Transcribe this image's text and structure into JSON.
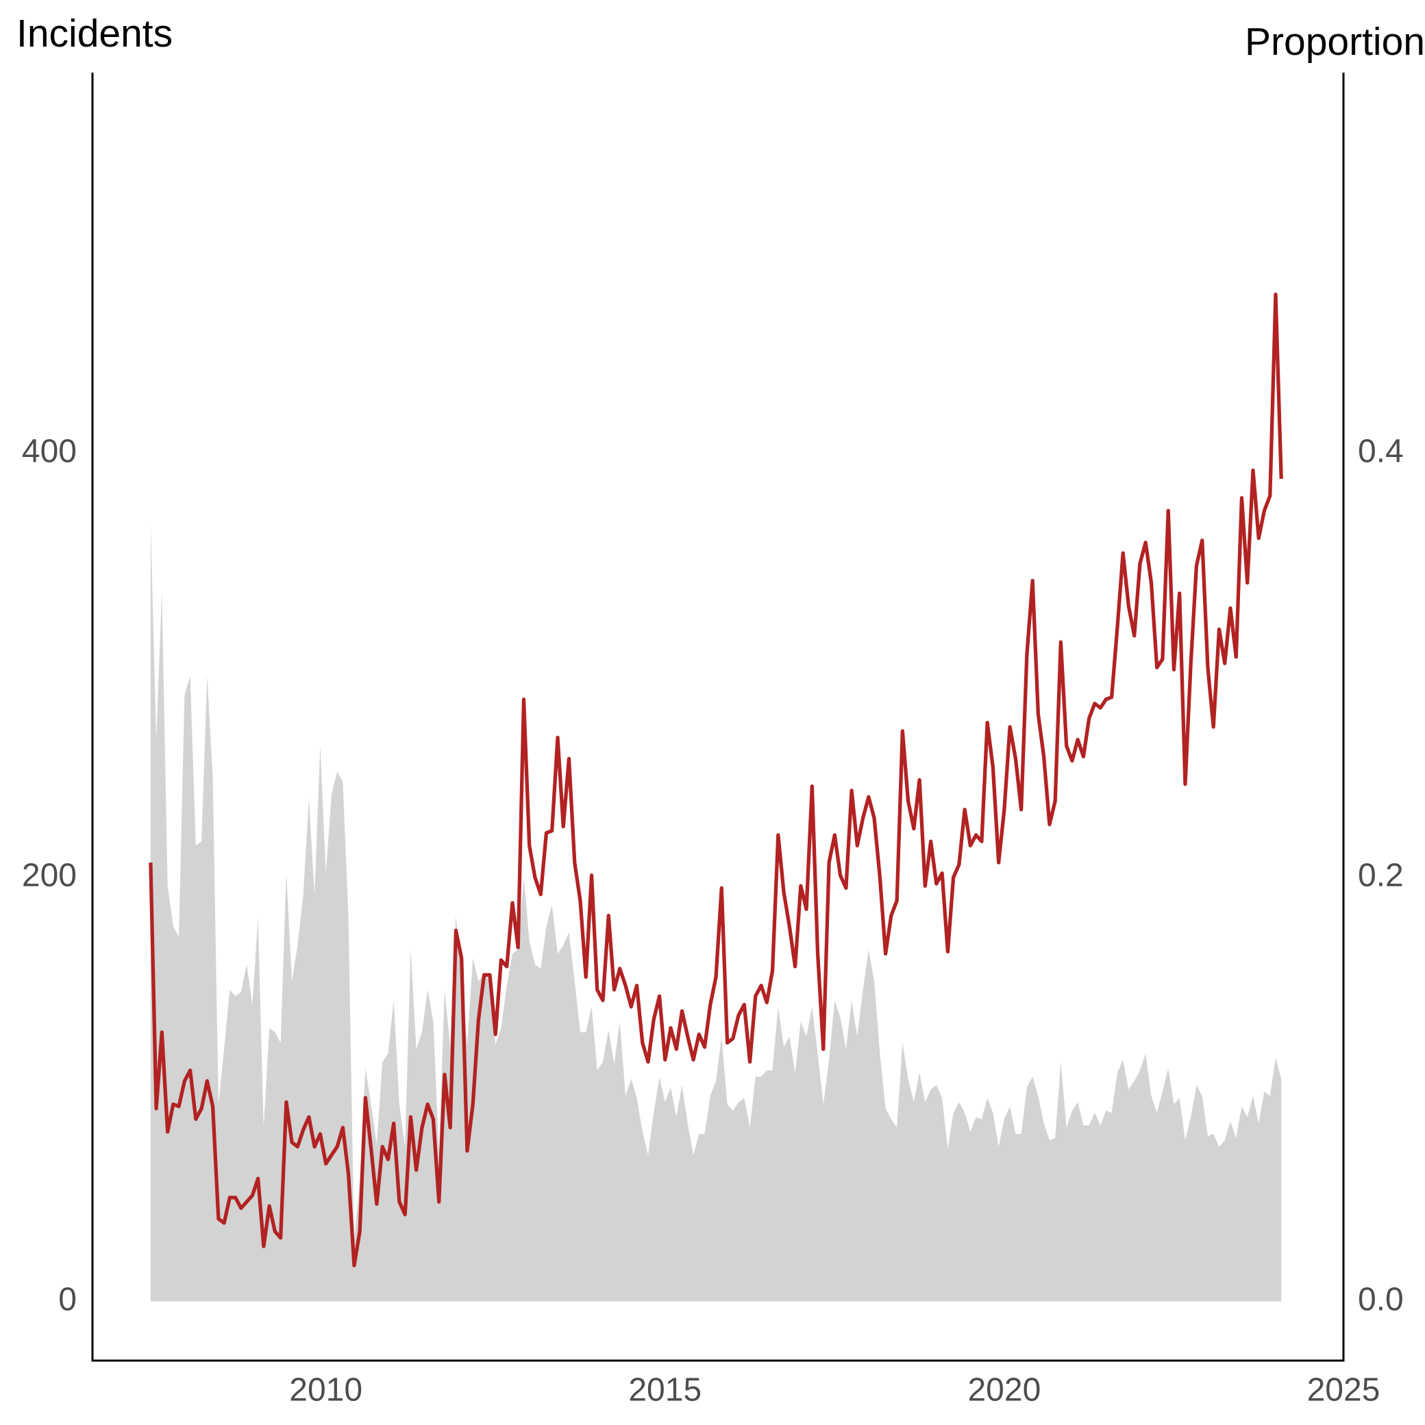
{
  "chart_data": {
    "type": "line",
    "y_label": "Incidents",
    "y2_label": "Proportion",
    "x": [
      2007.417,
      2007.5,
      2007.583,
      2007.667,
      2007.75,
      2007.833,
      2007.917,
      2008,
      2008.083,
      2008.167,
      2008.25,
      2008.333,
      2008.417,
      2008.5,
      2008.583,
      2008.667,
      2008.75,
      2008.833,
      2008.917,
      2009,
      2009.083,
      2009.167,
      2009.25,
      2009.333,
      2009.417,
      2009.5,
      2009.583,
      2009.667,
      2009.75,
      2009.833,
      2009.917,
      2010,
      2010.083,
      2010.167,
      2010.25,
      2010.333,
      2010.417,
      2010.5,
      2010.583,
      2010.667,
      2010.75,
      2010.833,
      2010.917,
      2011,
      2011.083,
      2011.167,
      2011.25,
      2011.333,
      2011.417,
      2011.5,
      2011.583,
      2011.667,
      2011.75,
      2011.833,
      2011.917,
      2012,
      2012.083,
      2012.167,
      2012.25,
      2012.333,
      2012.417,
      2012.5,
      2012.583,
      2012.667,
      2012.75,
      2012.833,
      2012.917,
      2013,
      2013.083,
      2013.167,
      2013.25,
      2013.333,
      2013.417,
      2013.5,
      2013.583,
      2013.667,
      2013.75,
      2013.833,
      2013.917,
      2014,
      2014.083,
      2014.167,
      2014.25,
      2014.333,
      2014.417,
      2014.5,
      2014.583,
      2014.667,
      2014.75,
      2014.833,
      2014.917,
      2015,
      2015.083,
      2015.167,
      2015.25,
      2015.333,
      2015.417,
      2015.5,
      2015.583,
      2015.667,
      2015.75,
      2015.833,
      2015.917,
      2016,
      2016.083,
      2016.167,
      2016.25,
      2016.333,
      2016.417,
      2016.5,
      2016.583,
      2016.667,
      2016.75,
      2016.833,
      2016.917,
      2017,
      2017.083,
      2017.167,
      2017.25,
      2017.333,
      2017.417,
      2017.5,
      2017.583,
      2017.667,
      2017.75,
      2017.833,
      2017.917,
      2018,
      2018.083,
      2018.167,
      2018.25,
      2018.333,
      2018.417,
      2018.5,
      2018.583,
      2018.667,
      2018.75,
      2018.833,
      2018.917,
      2019,
      2019.083,
      2019.167,
      2019.25,
      2019.333,
      2019.417,
      2019.5,
      2019.583,
      2019.667,
      2019.75,
      2019.833,
      2019.917,
      2020,
      2020.083,
      2020.167,
      2020.25,
      2020.333,
      2020.417,
      2020.5,
      2020.583,
      2020.667,
      2020.75,
      2020.833,
      2020.917,
      2021,
      2021.083,
      2021.167,
      2021.25,
      2021.333,
      2021.417,
      2021.5,
      2021.583,
      2021.667,
      2021.75,
      2021.833,
      2021.917,
      2022,
      2022.083,
      2022.167,
      2022.25,
      2022.333,
      2022.417,
      2022.5,
      2022.583,
      2022.667,
      2022.75,
      2022.833,
      2022.917,
      2023,
      2023.083,
      2023.167,
      2023.25,
      2023.333,
      2023.417,
      2023.5,
      2023.583,
      2023.667,
      2023.75,
      2023.833,
      2023.917,
      2024,
      2024.083
    ],
    "series": [
      {
        "kind": "area",
        "color": "#d3d3d3",
        "values": [
          367,
          265,
          335,
          196,
          177,
          172,
          286,
          295,
          215,
          217,
          295,
          247,
          93,
          119,
          147,
          144,
          146,
          159,
          140,
          181,
          82,
          129,
          127,
          122,
          202,
          151,
          168,
          192,
          237,
          192,
          262,
          202,
          239,
          250,
          245,
          181,
          29,
          57,
          110,
          93,
          74,
          113,
          117,
          142,
          93,
          73,
          166,
          119,
          127,
          147,
          132,
          70,
          147,
          120,
          182,
          155,
          121,
          162,
          151,
          155,
          151,
          121,
          129,
          149,
          164,
          166,
          200,
          170,
          159,
          157,
          177,
          187,
          164,
          168,
          174,
          151,
          127,
          127,
          139,
          109,
          113,
          128,
          112,
          132,
          97,
          105,
          96,
          80,
          69,
          89,
          106,
          94,
          101,
          87,
          102,
          84,
          69,
          79,
          79,
          97,
          104,
          125,
          93,
          90,
          94,
          96,
          82,
          106,
          106,
          109,
          109,
          139,
          120,
          125,
          108,
          132,
          125,
          139,
          117,
          93,
          114,
          142,
          134,
          119,
          142,
          125,
          147,
          166,
          151,
          117,
          91,
          86,
          82,
          122,
          105,
          94,
          108,
          94,
          100,
          102,
          96,
          72,
          89,
          94,
          89,
          80,
          87,
          86,
          96,
          89,
          73,
          86,
          92,
          79,
          79,
          101,
          106,
          97,
          84,
          76,
          77,
          113,
          82,
          90,
          94,
          83,
          83,
          89,
          83,
          90,
          89,
          108,
          114,
          100,
          104,
          109,
          117,
          97,
          89,
          99,
          110,
          93,
          96,
          76,
          87,
          102,
          97,
          78,
          79,
          73,
          76,
          85,
          77,
          92,
          87,
          97,
          84,
          99,
          97,
          115,
          105
        ]
      },
      {
        "kind": "line",
        "axis": "y2",
        "color": "#b22222",
        "values": [
          0.207,
          0.091,
          0.127,
          0.08,
          0.093,
          0.092,
          0.104,
          0.109,
          0.086,
          0.091,
          0.104,
          0.092,
          0.039,
          0.037,
          0.049,
          0.049,
          0.044,
          0.047,
          0.05,
          0.058,
          0.026,
          0.045,
          0.033,
          0.03,
          0.094,
          0.075,
          0.073,
          0.081,
          0.087,
          0.073,
          0.079,
          0.065,
          0.069,
          0.073,
          0.082,
          0.06,
          0.017,
          0.033,
          0.096,
          0.072,
          0.046,
          0.073,
          0.067,
          0.084,
          0.047,
          0.041,
          0.087,
          0.062,
          0.082,
          0.093,
          0.086,
          0.047,
          0.107,
          0.082,
          0.175,
          0.162,
          0.071,
          0.093,
          0.133,
          0.154,
          0.154,
          0.126,
          0.161,
          0.158,
          0.188,
          0.167,
          0.284,
          0.215,
          0.2,
          0.192,
          0.221,
          0.222,
          0.266,
          0.224,
          0.256,
          0.207,
          0.189,
          0.153,
          0.201,
          0.147,
          0.142,
          0.182,
          0.147,
          0.157,
          0.149,
          0.139,
          0.149,
          0.122,
          0.113,
          0.133,
          0.144,
          0.114,
          0.129,
          0.119,
          0.137,
          0.125,
          0.114,
          0.126,
          0.12,
          0.14,
          0.153,
          0.195,
          0.122,
          0.124,
          0.135,
          0.14,
          0.113,
          0.144,
          0.149,
          0.141,
          0.156,
          0.22,
          0.193,
          0.177,
          0.158,
          0.196,
          0.185,
          0.243,
          0.164,
          0.119,
          0.207,
          0.22,
          0.201,
          0.195,
          0.241,
          0.215,
          0.228,
          0.238,
          0.228,
          0.2,
          0.164,
          0.182,
          0.189,
          0.269,
          0.236,
          0.223,
          0.246,
          0.196,
          0.217,
          0.197,
          0.202,
          0.165,
          0.2,
          0.206,
          0.232,
          0.215,
          0.22,
          0.217,
          0.273,
          0.252,
          0.207,
          0.232,
          0.271,
          0.256,
          0.232,
          0.305,
          0.34,
          0.277,
          0.257,
          0.225,
          0.236,
          0.311,
          0.262,
          0.255,
          0.265,
          0.257,
          0.275,
          0.282,
          0.28,
          0.284,
          0.285,
          0.318,
          0.353,
          0.328,
          0.314,
          0.348,
          0.358,
          0.339,
          0.299,
          0.303,
          0.373,
          0.298,
          0.334,
          0.244,
          0.301,
          0.347,
          0.359,
          0.299,
          0.271,
          0.317,
          0.301,
          0.327,
          0.304,
          0.379,
          0.339,
          0.392,
          0.36,
          0.373,
          0.38,
          0.475,
          0.388
        ]
      }
    ],
    "xlim": [
      2006.56,
      2025
    ],
    "xticks": [
      2010,
      2015,
      2020,
      2025
    ],
    "ylim": [
      -27.9,
      579.6
    ],
    "yticks": [
      0,
      200,
      400
    ],
    "y2lim": [
      -0.0279,
      0.5796
    ],
    "y2ticks": [
      {
        "value": 0,
        "label": "0.0"
      },
      {
        "value": 0.2,
        "label": "0.2"
      },
      {
        "value": 0.4,
        "label": "0.4"
      }
    ],
    "grid": false
  }
}
